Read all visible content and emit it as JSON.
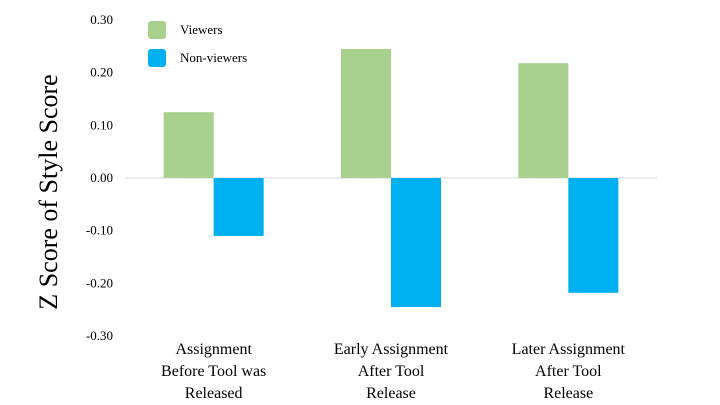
{
  "chart_data": {
    "type": "bar",
    "title": "",
    "xlabel": "",
    "ylabel": "Z Score of Style Score",
    "ylim": [
      -0.3,
      0.3
    ],
    "yticks": [
      "0.30",
      "0.20",
      "0.10",
      "0.00",
      "-0.10",
      "-0.20",
      "-0.30"
    ],
    "ytick_values": [
      0.3,
      0.2,
      0.1,
      0.0,
      -0.1,
      -0.2,
      -0.3
    ],
    "categories": [
      [
        "Assignment",
        "Before Tool was",
        "Released"
      ],
      [
        "Early Assignment",
        "After Tool",
        "Release"
      ],
      [
        "Later Assignment",
        "After Tool",
        "Release"
      ]
    ],
    "series": [
      {
        "name": "Viewers",
        "color": "#a9d18e",
        "values": [
          0.125,
          0.245,
          0.218
        ]
      },
      {
        "name": "Non-viewers",
        "color": "#00b0f0",
        "values": [
          -0.11,
          -0.245,
          -0.218
        ]
      }
    ],
    "legend_position": "top-left",
    "grid": false
  }
}
